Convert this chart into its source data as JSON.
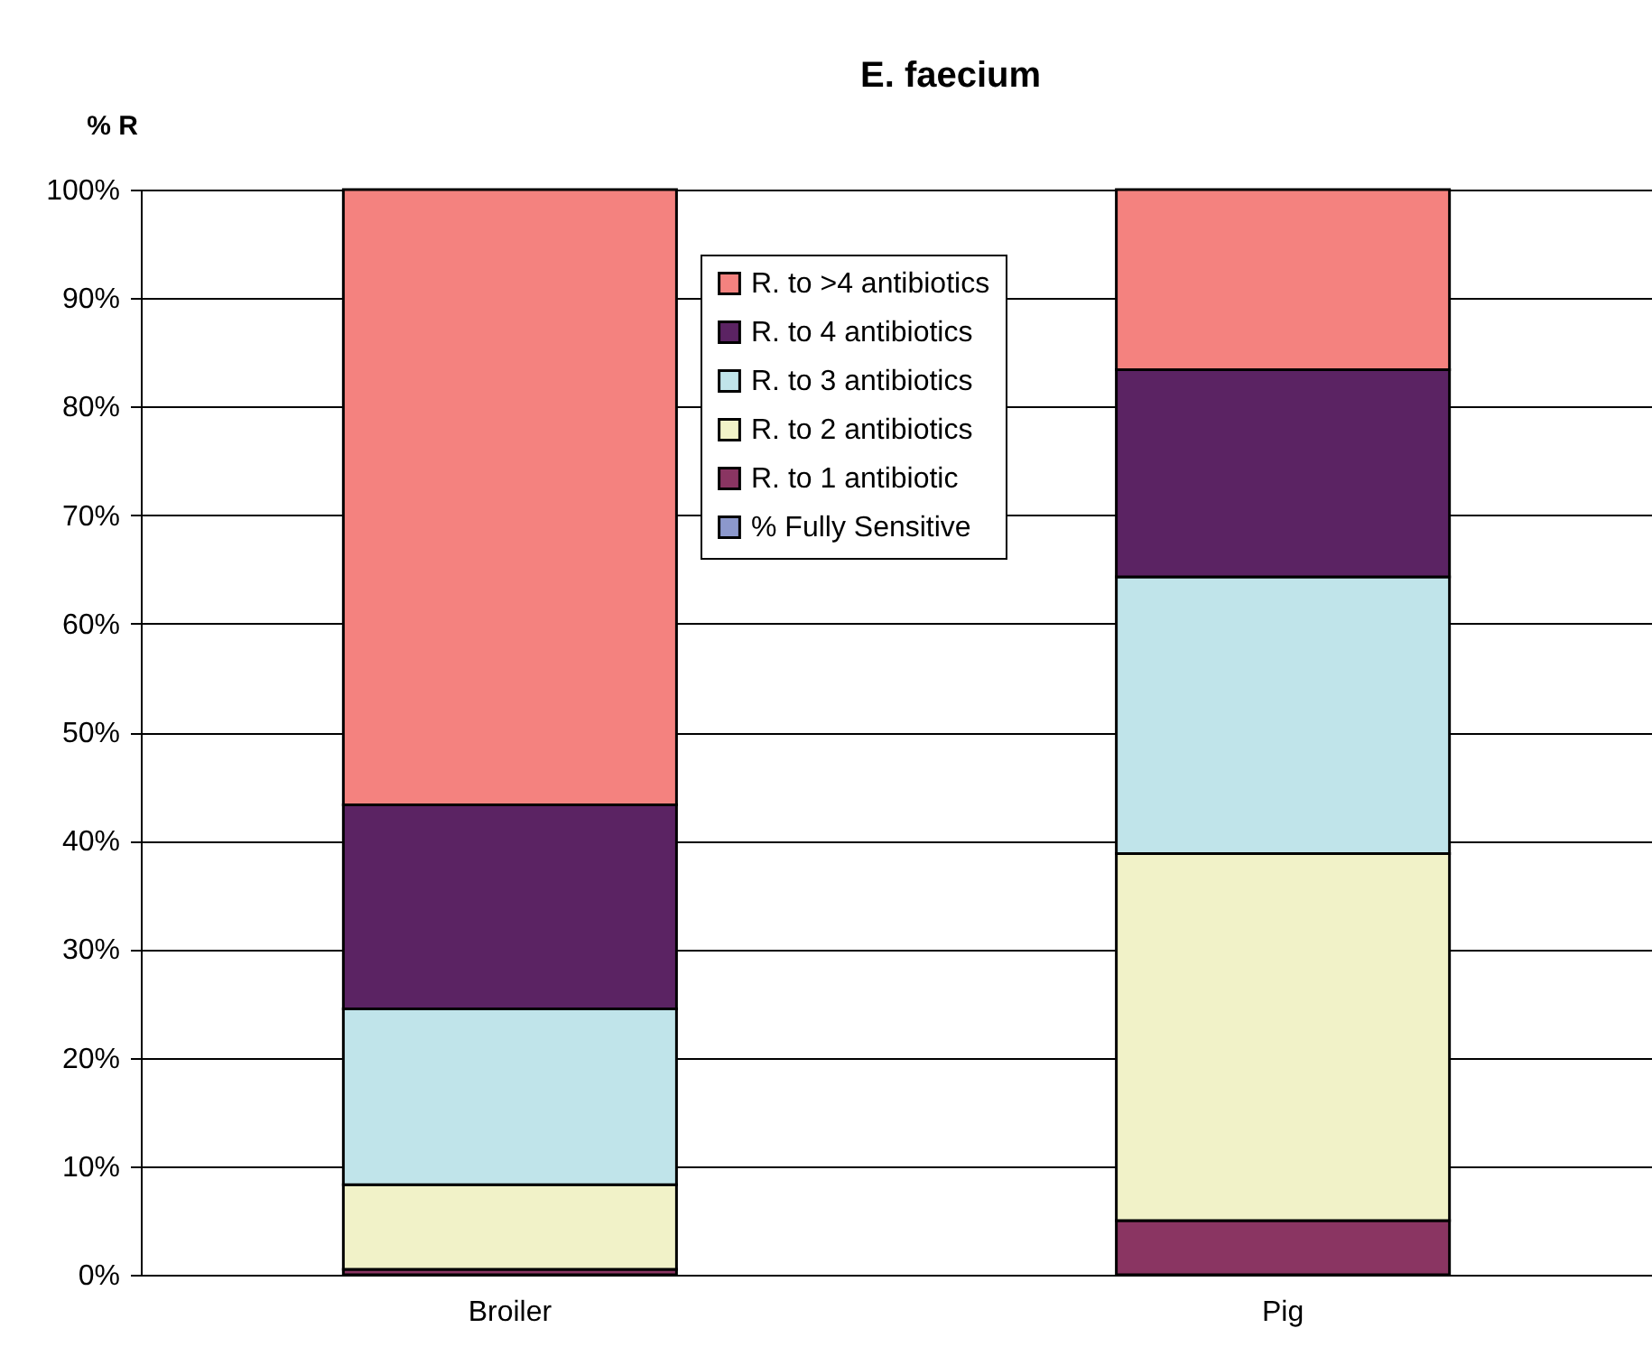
{
  "chart_data": {
    "type": "bar",
    "title": "E. faecium",
    "ylabel": "% R",
    "categories": [
      "Broiler",
      "Pig"
    ],
    "stacked": true,
    "series": [
      {
        "name": "% Fully Sensitive",
        "color": "#8c98cc",
        "values": [
          0,
          0
        ]
      },
      {
        "name": "R. to 1 antibiotic",
        "color": "#8a3562",
        "values": [
          0.5,
          5.0
        ]
      },
      {
        "name": "R. to 2 antibiotics",
        "color": "#f1f2c8",
        "values": [
          7.8,
          33.8
        ]
      },
      {
        "name": "R. to 3 antibiotics",
        "color": "#c0e4ea",
        "values": [
          16.2,
          25.5
        ]
      },
      {
        "name": "R. to 4 antibiotics",
        "color": "#5b2363",
        "values": [
          18.8,
          19.1
        ]
      },
      {
        "name": "R. to >4 antibiotics",
        "color": "#f4827f",
        "values": [
          56.7,
          16.6
        ]
      }
    ],
    "ylim": [
      0,
      100
    ],
    "yticks": [
      {
        "value": 0,
        "label": "0%"
      },
      {
        "value": 10,
        "label": "10%"
      },
      {
        "value": 20,
        "label": "20%"
      },
      {
        "value": 30,
        "label": "30%"
      },
      {
        "value": 40,
        "label": "40%"
      },
      {
        "value": 50,
        "label": "50%"
      },
      {
        "value": 60,
        "label": "60%"
      },
      {
        "value": 70,
        "label": "70%"
      },
      {
        "value": 80,
        "label": "80%"
      },
      {
        "value": 90,
        "label": "90%"
      },
      {
        "value": 100,
        "label": "100%"
      }
    ],
    "grid": "y",
    "legend": "top"
  }
}
